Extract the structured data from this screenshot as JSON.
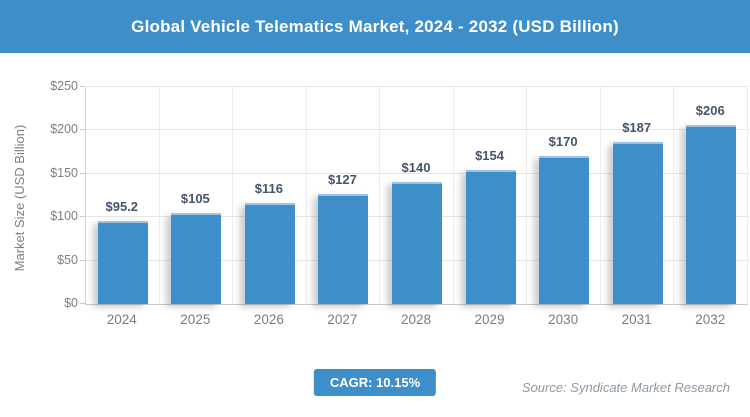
{
  "header": {
    "title": "Global Vehicle Telematics Market, 2024 - 2032 (USD Billion)"
  },
  "chart_data": {
    "type": "bar",
    "title": "Global Vehicle Telematics Market, 2024 - 2032 (USD Billion)",
    "categories": [
      "2024",
      "2025",
      "2026",
      "2027",
      "2028",
      "2029",
      "2030",
      "2031",
      "2032"
    ],
    "values": [
      95.2,
      105,
      116,
      127,
      140,
      154,
      170,
      187,
      206
    ],
    "value_labels": [
      "$95.2",
      "$105",
      "$116",
      "$127",
      "$140",
      "$154",
      "$170",
      "$187",
      "$206"
    ],
    "xlabel": "",
    "ylabel": "Market Size (USD Billion)",
    "ylim": [
      0,
      250
    ],
    "ytick_labels": [
      "$0",
      "$50",
      "$100",
      "$150",
      "$200",
      "$250"
    ],
    "grid": "horizontal and vertical light gray",
    "legend": "none",
    "bar_color": "#3e8ec9",
    "bar_top_edge_color": "#9cc3e4",
    "label_color": "#44546a",
    "axis_text_color": "#7f7f7f"
  },
  "footer": {
    "cagr_label": "CAGR: 10.15%",
    "source": "Source: Syndicate Market Research"
  },
  "colors": {
    "accent": "#3e8ec9",
    "background": "#ffffff"
  }
}
